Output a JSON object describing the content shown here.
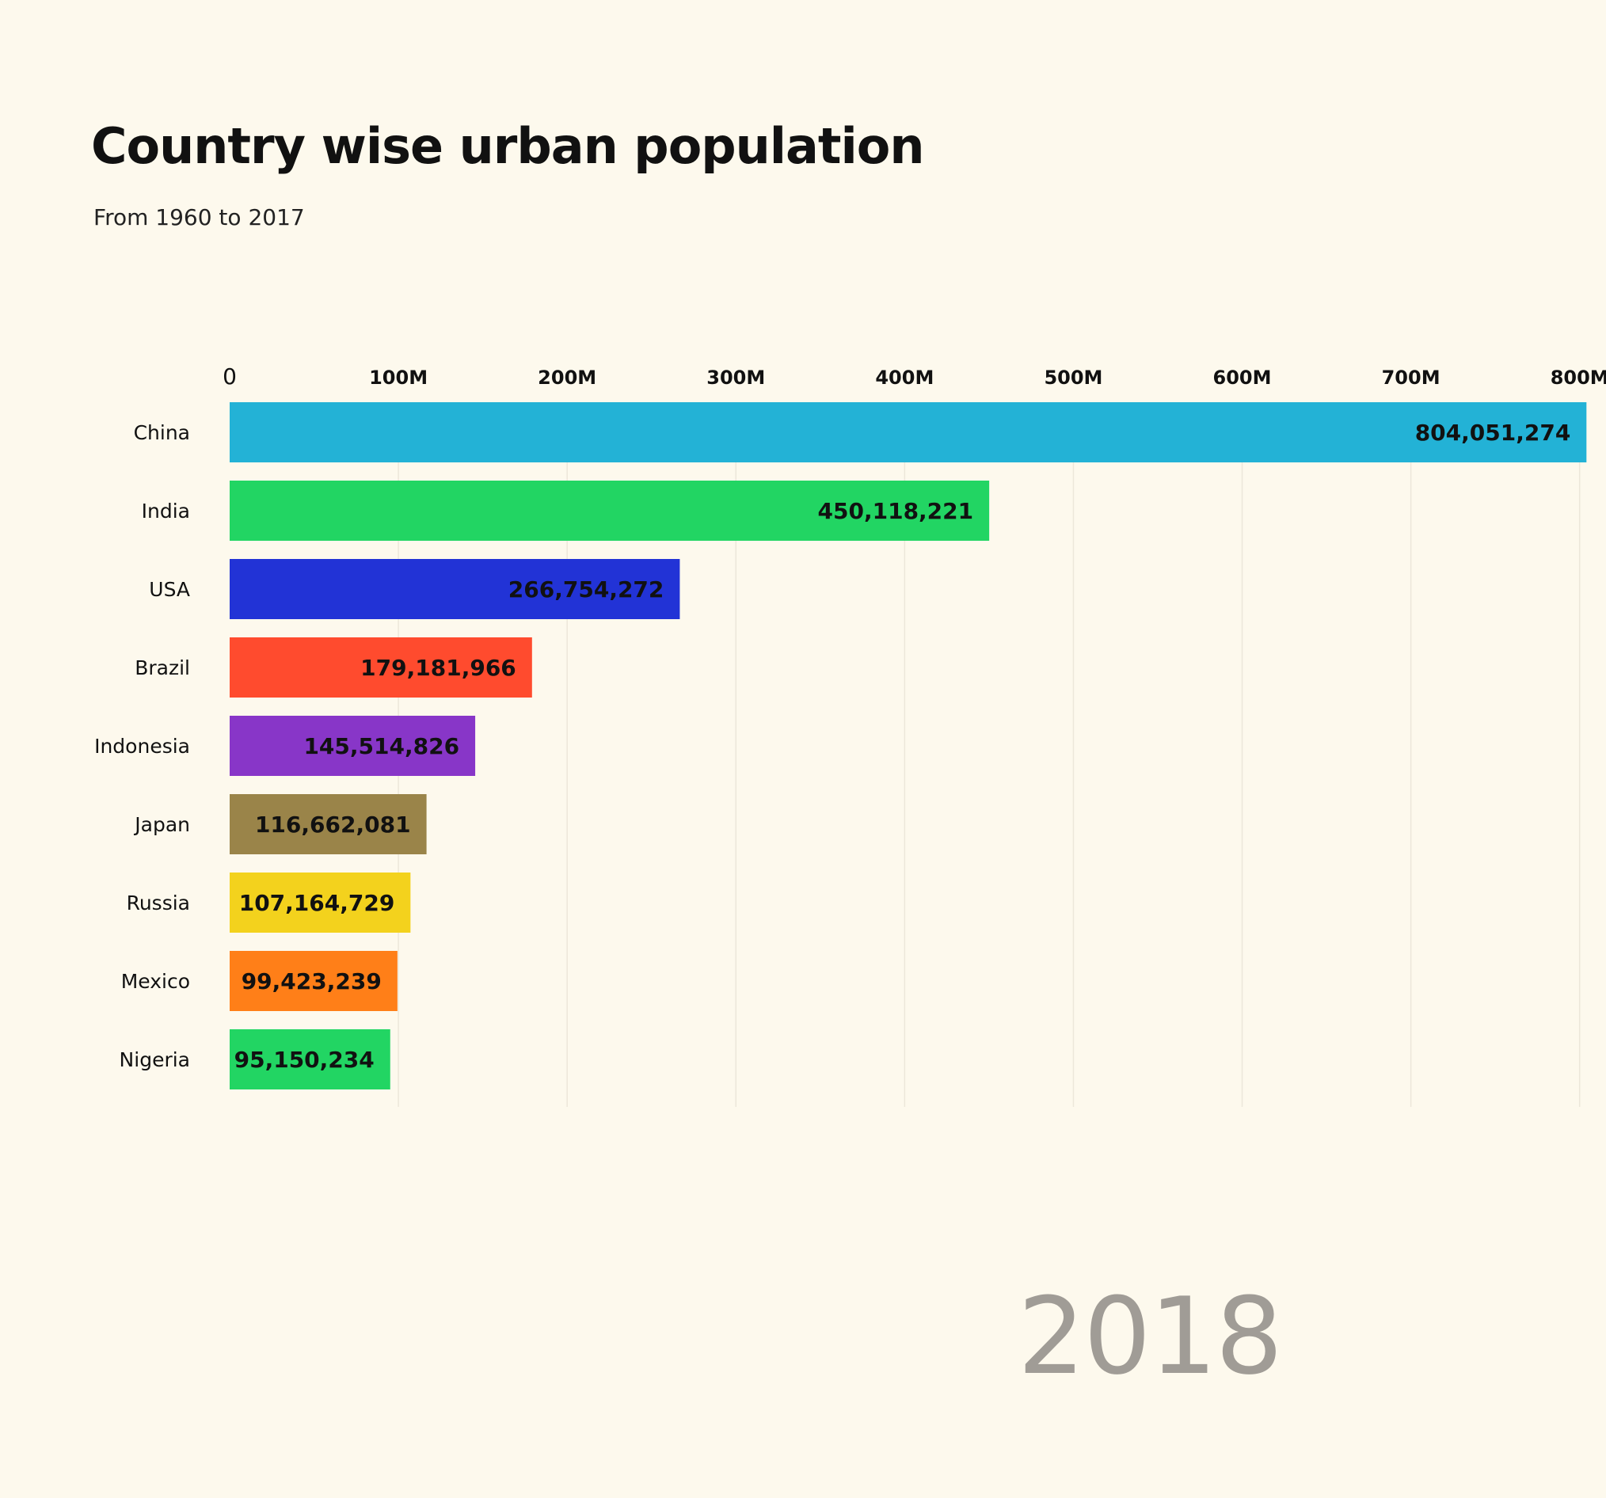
{
  "chart_data": {
    "type": "bar",
    "orientation": "horizontal",
    "title": "Country wise urban population",
    "subtitle": "From 1960 to 2017",
    "year": "2018",
    "categories": [
      "China",
      "India",
      "USA",
      "Brazil",
      "Indonesia",
      "Japan",
      "Russia",
      "Mexico",
      "Nigeria"
    ],
    "values": [
      804051274,
      450118221,
      266754272,
      179181966,
      145514826,
      116662081,
      107164729,
      99423239,
      95150234
    ],
    "value_labels": [
      "804,051,274",
      "450,118,221",
      "266,754,272",
      "179,181,966",
      "145,514,826",
      "116,662,081",
      "107,164,729",
      "99,423,239",
      "95,150,234"
    ],
    "colors": [
      "#23b2d6",
      "#22d563",
      "#2233d6",
      "#ff4b2e",
      "#8836c8",
      "#9a8449",
      "#f3d21d",
      "#ff7f18",
      "#22d563"
    ],
    "x_ticks": [
      0,
      100000000,
      200000000,
      300000000,
      400000000,
      500000000,
      600000000,
      700000000,
      800000000
    ],
    "x_tick_labels": [
      "0",
      "100M",
      "200M",
      "300M",
      "400M",
      "500M",
      "600M",
      "700M",
      "800M"
    ],
    "xlim": [
      0,
      810000000
    ],
    "x_axis_position": "top",
    "grid": true,
    "legend": "none"
  }
}
